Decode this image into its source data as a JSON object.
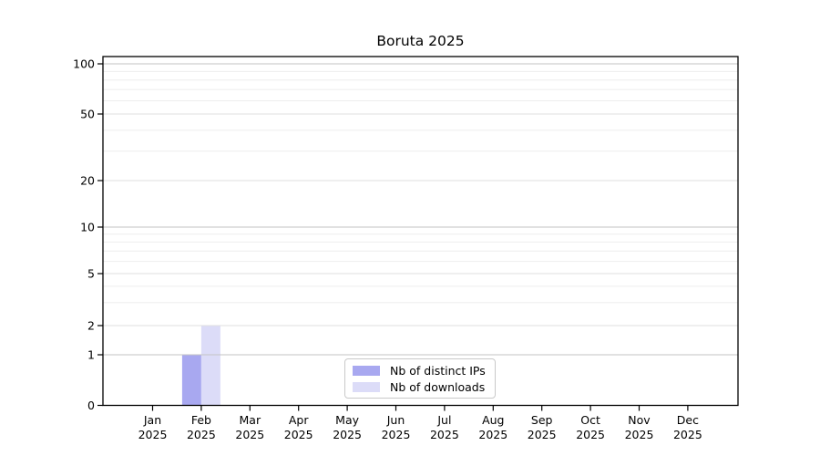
{
  "chart_data": {
    "type": "bar",
    "title": "Boruta 2025",
    "categories": [
      "Jan",
      "Feb",
      "Mar",
      "Apr",
      "May",
      "Jun",
      "Jul",
      "Aug",
      "Sep",
      "Oct",
      "Nov",
      "Dec"
    ],
    "category_year": "2025",
    "series": [
      {
        "name": "Nb of distinct IPs",
        "color": "#a8a8f0",
        "values": [
          0,
          1,
          0,
          0,
          0,
          0,
          0,
          0,
          0,
          0,
          0,
          0
        ]
      },
      {
        "name": "Nb of downloads",
        "color": "#dcdcf8",
        "values": [
          0,
          2,
          0,
          0,
          0,
          0,
          0,
          0,
          0,
          0,
          0,
          0
        ]
      }
    ],
    "xlabel": "",
    "ylabel": "",
    "y_scale": "symlog",
    "y_ticks": [
      0,
      1,
      2,
      5,
      10,
      20,
      50,
      100
    ],
    "y_minor_gridlines": [
      3,
      4,
      6,
      7,
      8,
      9,
      30,
      40,
      60,
      70,
      80,
      90
    ],
    "ylim": [
      0,
      110
    ],
    "grid": true,
    "legend_position": "lower center",
    "colors": {
      "major_grid": "#c3c3c3",
      "labeled_grid": "#dfdfdf",
      "minor_grid": "#eeeeee",
      "axis": "#000000",
      "text": "#000000"
    }
  }
}
